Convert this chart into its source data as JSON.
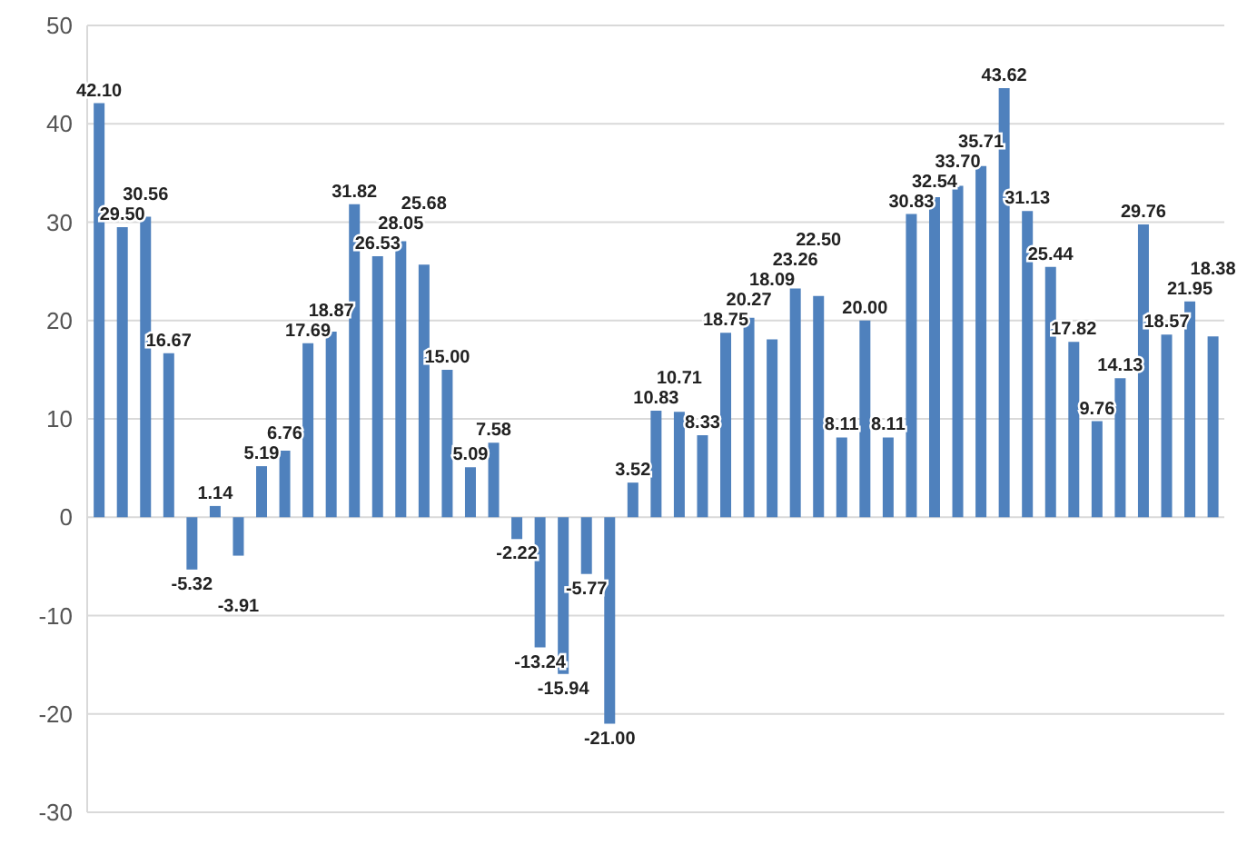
{
  "chart_data": {
    "type": "bar",
    "categories": [
      null,
      null,
      null,
      null,
      null,
      null,
      null,
      null,
      null,
      null,
      null,
      null,
      null,
      null,
      null,
      null,
      null,
      null,
      null,
      null,
      null,
      null,
      null,
      null,
      null,
      null,
      null,
      null,
      null,
      null,
      null,
      null,
      null,
      null,
      null,
      null,
      null,
      null,
      null,
      null,
      null,
      null,
      null,
      null,
      null,
      null,
      null,
      null,
      null
    ],
    "values": [
      42.1,
      29.5,
      30.56,
      16.67,
      -5.32,
      1.14,
      -3.91,
      5.19,
      6.76,
      17.69,
      18.87,
      31.82,
      26.53,
      28.05,
      25.68,
      15.0,
      5.09,
      7.58,
      -2.22,
      -13.24,
      -15.94,
      -5.77,
      -21.0,
      3.52,
      10.83,
      10.71,
      8.33,
      18.75,
      20.27,
      18.09,
      23.26,
      22.5,
      8.11,
      20.0,
      8.11,
      30.83,
      32.54,
      33.7,
      35.71,
      43.62,
      31.13,
      25.44,
      17.82,
      9.76,
      14.13,
      29.76,
      18.57,
      21.95,
      18.38
    ],
    "value_labels": [
      "42.10",
      "29.50",
      "30.56",
      "16.67",
      "-5.32",
      "1.14",
      "-3.91",
      "5.19",
      "6.76",
      "17.69",
      "18.87",
      "31.82",
      "26.53",
      "28.05",
      "25.68",
      "15.00",
      "5.09",
      "7.58",
      "-2.22",
      "-13.24",
      "-15.94",
      "-5.77",
      "-21.00",
      "3.52",
      "10.83",
      "10.71",
      "8.33",
      "18.75",
      "20.27",
      "18.09",
      "23.26",
      "22.50",
      "8.11",
      "20.00",
      "8.11",
      "30.83",
      "32.54",
      "33.70",
      "35.71",
      "43.62",
      "31.13",
      "25.44",
      "17.82",
      "9.76",
      "14.13",
      "29.76",
      "18.57",
      "21.95",
      "18.38"
    ],
    "color": "#4f81bd",
    "ylim": [
      -30,
      50
    ],
    "yticks": [
      -30,
      -20,
      -10,
      0,
      10,
      20,
      30,
      40,
      50
    ],
    "grid": "y",
    "tick_labels": "y"
  }
}
